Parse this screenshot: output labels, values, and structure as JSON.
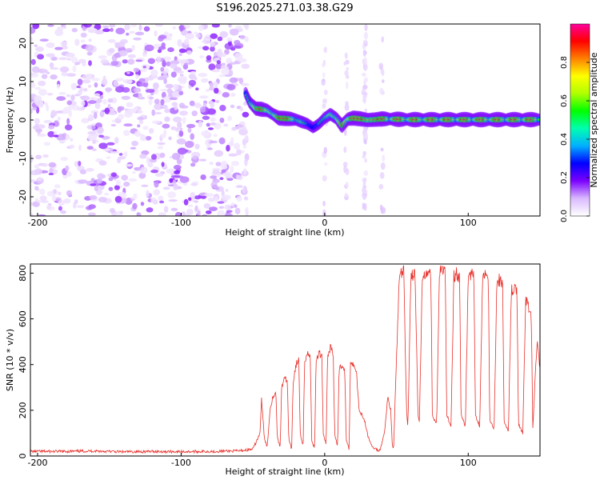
{
  "figure_title": "S196.2025.271.03.38.G29",
  "chart_data": [
    {
      "type": "heatmap",
      "title": "S196.2025.271.03.38.G29",
      "xlabel": "Height of straight line (km)",
      "ylabel": "Frequency (Hz)",
      "xlim": [
        -205,
        150
      ],
      "ylim": [
        -25,
        25
      ],
      "xticks": [
        -200,
        -100,
        0,
        100
      ],
      "yticks": [
        -20,
        -10,
        0,
        10,
        20
      ],
      "colorbar": {
        "label": "Normalized spectral amplitude",
        "range": [
          0.0,
          1.0
        ],
        "ticks": [
          0.0,
          0.2,
          0.4,
          0.6,
          0.8
        ],
        "colors": [
          "#ffffff",
          "#d9b8ff",
          "#7b00ff",
          "#0000ff",
          "#00b0ff",
          "#00ffb0",
          "#00ff00",
          "#b0ff00",
          "#ffff00",
          "#ff8000",
          "#ff0000",
          "#ff00a0"
        ]
      },
      "noise_region_x": [
        -205,
        -55
      ],
      "ridge": {
        "x": [
          -55,
          -52,
          -48,
          -44,
          -40,
          -36,
          -32,
          -28,
          -24,
          -20,
          -16,
          -12,
          -8,
          -4,
          0,
          4,
          8,
          12,
          16,
          20,
          25,
          30,
          35,
          40,
          50,
          60,
          80,
          100,
          120,
          140,
          150
        ],
        "freq": [
          7,
          4.5,
          3,
          2.8,
          2.5,
          1.5,
          0.5,
          0.4,
          0.3,
          0.1,
          -0.5,
          -1,
          -2,
          -1,
          0.5,
          1.5,
          0.5,
          -1.5,
          0.2,
          0.5,
          0.3,
          0,
          0.1,
          0.3,
          0.2,
          0.1,
          0.1,
          0.1,
          0.1,
          0.1,
          0.1
        ],
        "amplitude": [
          0.5,
          0.55,
          0.8,
          0.95,
          0.7,
          0.6,
          0.9,
          0.95,
          0.85,
          0.55,
          0.6,
          0.5,
          0.45,
          0.5,
          0.55,
          0.65,
          0.6,
          0.9,
          0.7,
          0.95,
          0.95,
          0.8,
          0.85,
          0.95,
          0.97,
          0.97,
          0.97,
          0.97,
          0.97,
          0.97,
          0.95
        ]
      },
      "vertical_streaks_x": [
        -55,
        0,
        15,
        28,
        40
      ]
    },
    {
      "type": "line",
      "xlabel": "Height of straight line (km)",
      "ylabel": "SNR (10 * v/v)",
      "xlim": [
        -205,
        150
      ],
      "ylim": [
        0,
        840
      ],
      "xticks": [
        -200,
        -100,
        0,
        100
      ],
      "yticks": [
        0,
        200,
        400,
        600,
        800
      ],
      "series": [
        {
          "name": "SNR",
          "color": "#e8302a",
          "x": [
            -205,
            -180,
            -160,
            -140,
            -120,
            -100,
            -80,
            -60,
            -50,
            -45,
            -44,
            -42,
            -40,
            -38,
            -36,
            -34,
            -33,
            -31,
            -30,
            -28,
            -26,
            -25,
            -23,
            -22,
            -20,
            -18,
            -17,
            -15,
            -14,
            -12,
            -10,
            -9,
            -7,
            -6,
            -4,
            -2,
            -1,
            1,
            2,
            4,
            6,
            7,
            9,
            10,
            12,
            14,
            15,
            17,
            18,
            20,
            22,
            24,
            26,
            28,
            30,
            33,
            36,
            38,
            40,
            42,
            44,
            46,
            47,
            48,
            50,
            52,
            54,
            55,
            57,
            58,
            60,
            62,
            63,
            65,
            66,
            68,
            70,
            72,
            74,
            75,
            78,
            80,
            82,
            84,
            85,
            88,
            90,
            92,
            94,
            95,
            98,
            100,
            102,
            104,
            105,
            108,
            110,
            112,
            114,
            115,
            118,
            120,
            122,
            124,
            125,
            128,
            130,
            132,
            134,
            135,
            138,
            140,
            142,
            144,
            145,
            148,
            150
          ],
          "y": [
            20,
            20,
            22,
            18,
            20,
            19,
            20,
            22,
            30,
            100,
            250,
            80,
            40,
            210,
            260,
            280,
            80,
            40,
            300,
            350,
            320,
            70,
            30,
            320,
            400,
            420,
            90,
            40,
            420,
            450,
            430,
            70,
            30,
            420,
            450,
            440,
            100,
            50,
            430,
            480,
            440,
            90,
            40,
            380,
            400,
            380,
            70,
            30,
            420,
            400,
            380,
            200,
            180,
            150,
            90,
            40,
            30,
            20,
            60,
            120,
            260,
            200,
            60,
            30,
            420,
            780,
            800,
            820,
            200,
            130,
            780,
            800,
            780,
            180,
            140,
            790,
            810,
            800,
            790,
            180,
            140,
            800,
            810,
            800,
            180,
            130,
            790,
            800,
            780,
            180,
            130,
            790,
            800,
            780,
            180,
            130,
            780,
            790,
            770,
            160,
            120,
            760,
            770,
            750,
            150,
            110,
            720,
            730,
            710,
            140,
            100,
            680,
            660,
            600,
            120,
            520,
            380
          ]
        }
      ]
    }
  ]
}
